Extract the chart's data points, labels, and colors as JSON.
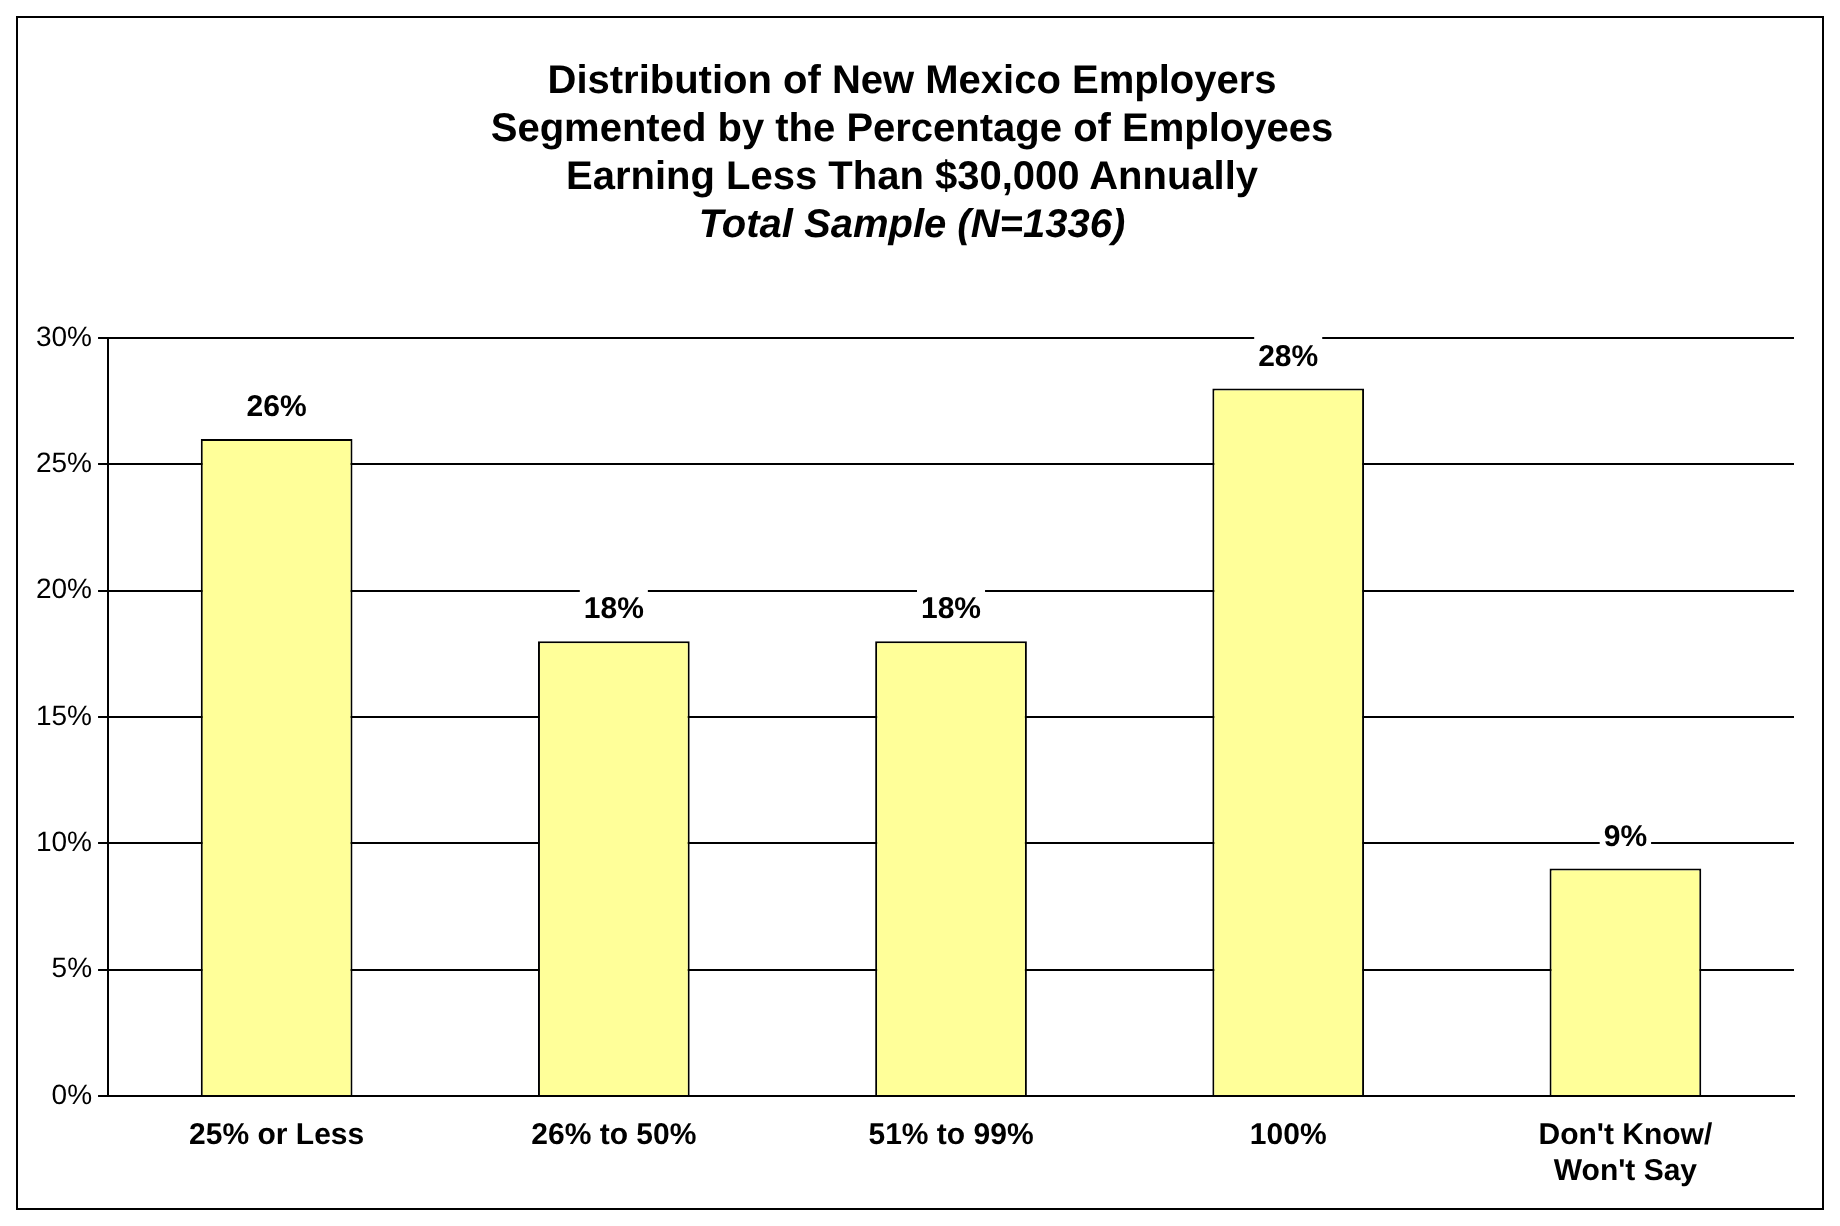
{
  "chart_data": {
    "type": "bar",
    "title": "Distribution of New Mexico Employers\nSegmented by the Percentage of Employees\nEarning Less Than $30,000 Annually",
    "subtitle": "Total Sample (N=1336)",
    "categories": [
      "25% or Less",
      "26% to 50%",
      "51% to 99%",
      "100%",
      "Don't Know/ Won't Say"
    ],
    "values": [
      26,
      18,
      18,
      28,
      9
    ],
    "color": "#ffff99",
    "value_labels": [
      "26%",
      "18%",
      "18%",
      "28%",
      "9%"
    ],
    "ylim": [
      0,
      30
    ],
    "yticks": [
      {
        "value": 0,
        "label": "0%"
      },
      {
        "value": 5,
        "label": "5%"
      },
      {
        "value": 10,
        "label": "10%"
      },
      {
        "value": 15,
        "label": "15%"
      },
      {
        "value": 20,
        "label": "20%"
      },
      {
        "value": 25,
        "label": "25%"
      },
      {
        "value": 30,
        "label": "30%"
      }
    ],
    "grid": "y",
    "legend": false
  }
}
